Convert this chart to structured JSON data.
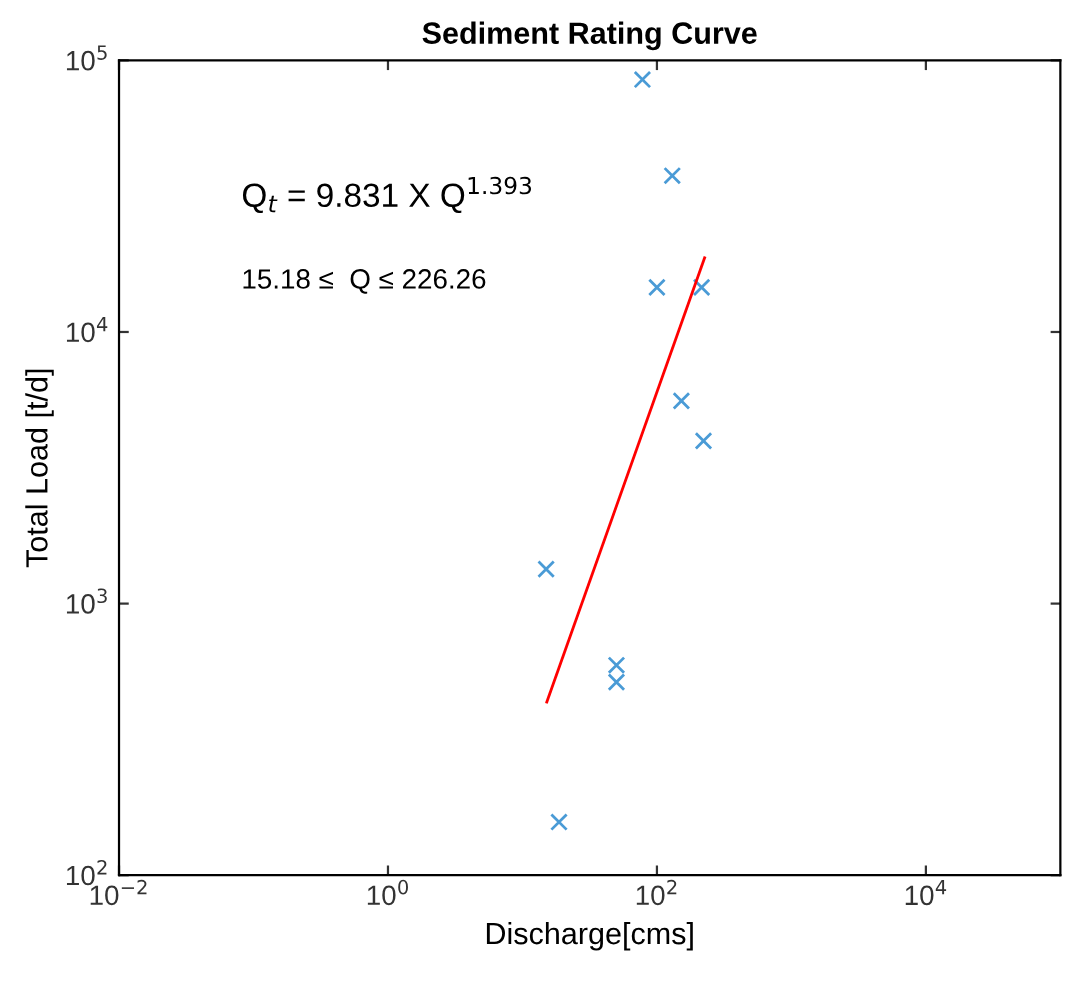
{
  "chart_data": {
    "type": "scatter",
    "title": "Sediment Rating Curve",
    "xlabel": "Discharge[cms]",
    "ylabel": "Total Load [t/d]",
    "log": "xy",
    "xlim": [
      0.01,
      100000
    ],
    "ylim": [
      100,
      100000
    ],
    "xticks": [
      {
        "value": 0.01,
        "label": "10$^{−2}$"
      },
      {
        "value": 1,
        "label": "10$^{0}$"
      },
      {
        "value": 100,
        "label": "10$^{2}$"
      },
      {
        "value": 10000,
        "label": "10$^{4}$"
      }
    ],
    "yticks": [
      {
        "value": 100,
        "label": "10$^{2}$"
      },
      {
        "value": 1000,
        "label": "10$^{3}$"
      },
      {
        "value": 10000,
        "label": "10$^{4}$"
      },
      {
        "value": 100000,
        "label": "10$^{5}$"
      }
    ],
    "grid": false,
    "legend": false,
    "marker": "cross",
    "annotations": [
      "Q$_{t}$ = 9.831 X Q$^{1.393}$",
      "15.18 ≤  Q ≤ 226.26"
    ],
    "series": [
      {
        "color": "#4a9bd6",
        "x": [
          78,
          130,
          100,
          215,
          152,
          222,
          15,
          50,
          50,
          18.7
        ],
        "values": [
          85000,
          37600,
          14600,
          14600,
          5580,
          3970,
          1340,
          593,
          514,
          157
        ]
      },
      {
        "type": "line",
        "color": "#ff0000",
        "marker": "none",
        "line_style": "solid",
        "x": [
          15.18,
          226.26
        ],
        "values": [
          434,
          18760
        ]
      }
    ]
  }
}
